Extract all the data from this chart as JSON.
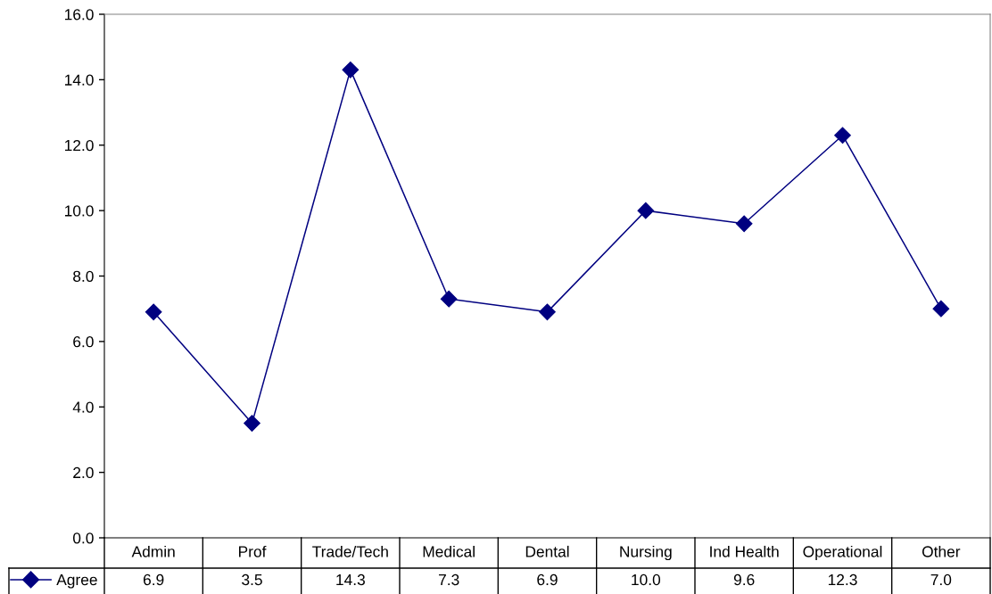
{
  "chart_data": {
    "type": "line",
    "categories": [
      "Admin",
      "Prof",
      "Trade/Tech",
      "Medical",
      "Dental",
      "Nursing",
      "Ind Health",
      "Operational",
      "Other"
    ],
    "series": [
      {
        "name": "Agree",
        "color": "#000080",
        "values": [
          6.9,
          3.5,
          14.3,
          7.3,
          6.9,
          10.0,
          9.6,
          12.3,
          7.0
        ],
        "value_labels": [
          "6.9",
          "3.5",
          "14.3",
          "7.3",
          "6.9",
          "10.0",
          "9.6",
          "12.3",
          "7.0"
        ]
      }
    ],
    "ylim": [
      0,
      16
    ],
    "yticks": [
      {
        "value": 0,
        "label": "0.0"
      },
      {
        "value": 2,
        "label": "2.0"
      },
      {
        "value": 4,
        "label": "4.0"
      },
      {
        "value": 6,
        "label": "6.0"
      },
      {
        "value": 8,
        "label": "8.0"
      },
      {
        "value": 10,
        "label": "10.0"
      },
      {
        "value": 12,
        "label": "12.0"
      },
      {
        "value": 14,
        "label": "14.0"
      },
      {
        "value": 16,
        "label": "16.0"
      }
    ],
    "marker": "diamond",
    "line_style": "solid",
    "legend": "bottom left"
  }
}
